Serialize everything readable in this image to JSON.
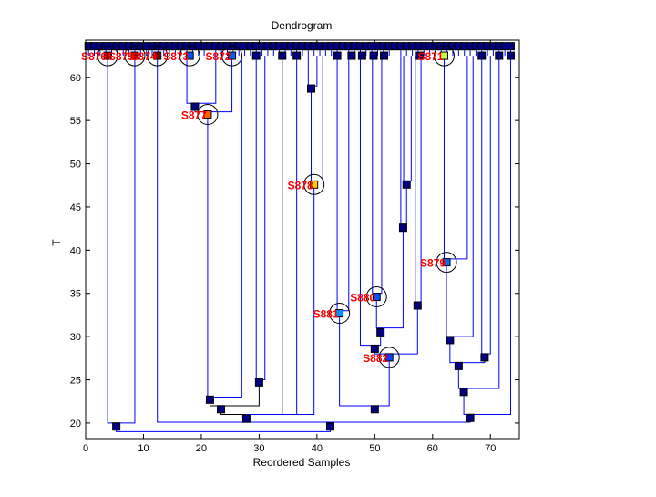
{
  "chart_data": {
    "type": "dendrogram",
    "title": "Dendrogram",
    "xlabel": "Reordered Samples",
    "ylabel": "T",
    "xlim": [
      0,
      75
    ],
    "ylim": [
      18.2,
      64.3
    ],
    "xticks": [
      0,
      10,
      20,
      30,
      40,
      50,
      60,
      70
    ],
    "yticks": [
      20,
      25,
      30,
      35,
      40,
      45,
      50,
      55,
      60
    ],
    "leaf_count": 74,
    "leaf_T": 63.6,
    "colors": {
      "line": "#0000ff",
      "node": "#000080",
      "label": "#ff0000"
    },
    "highlighted_nodes": [
      {
        "label": "S876",
        "x": 3.8,
        "T": 62.5,
        "color": "#a00000"
      },
      {
        "label": "S875",
        "x": 8.5,
        "T": 62.5,
        "color": "#a00000"
      },
      {
        "label": "S874",
        "x": 12.4,
        "T": 62.5,
        "color": "#800000"
      },
      {
        "label": "S873",
        "x": 18.0,
        "T": 62.5,
        "color": "#0050ff"
      },
      {
        "label": "S872",
        "x": 25.3,
        "T": 62.5,
        "color": "#0060ff"
      },
      {
        "label": "S877",
        "x": 21.1,
        "T": 55.7,
        "color": "#ff6000"
      },
      {
        "label": "S878",
        "x": 39.5,
        "T": 47.6,
        "color": "#ffd000"
      },
      {
        "label": "S879",
        "x": 62.4,
        "T": 38.6,
        "color": "#0070ff"
      },
      {
        "label": "S880",
        "x": 50.3,
        "T": 34.6,
        "color": "#0050ff"
      },
      {
        "label": "S881",
        "x": 43.9,
        "T": 32.7,
        "color": "#0090ff"
      },
      {
        "label": "S882",
        "x": 52.5,
        "T": 27.6,
        "color": "#0040ff"
      },
      {
        "label": "S871",
        "x": 62.0,
        "T": 62.5,
        "color": "#c0ff40"
      }
    ],
    "nodes": [
      [
        5.3,
        19.6
      ],
      [
        18.9,
        56.6
      ],
      [
        21.5,
        22.7
      ],
      [
        23.4,
        21.6
      ],
      [
        27.8,
        20.5
      ],
      [
        30,
        24.7
      ],
      [
        39,
        58.7
      ],
      [
        42.3,
        19.6
      ],
      [
        50,
        21.6
      ],
      [
        50,
        28.6
      ],
      [
        51,
        30.5
      ],
      [
        55.5,
        47.6
      ],
      [
        54.9,
        42.6
      ],
      [
        57.4,
        33.6
      ],
      [
        63,
        29.6
      ],
      [
        64.5,
        26.6
      ],
      [
        65.4,
        23.6
      ],
      [
        66.5,
        20.6
      ],
      [
        69,
        27.6
      ],
      [
        29.5,
        62.5
      ],
      [
        34,
        62.5
      ],
      [
        36.5,
        62.5
      ],
      [
        43.5,
        62.5
      ],
      [
        46,
        62.5
      ],
      [
        47.8,
        62.5
      ],
      [
        49.8,
        62.5
      ],
      [
        51.6,
        62.5
      ],
      [
        57.8,
        62.5
      ],
      [
        68.5,
        62.5
      ],
      [
        71.5,
        62.5
      ],
      [
        73.5,
        62.5
      ]
    ],
    "links": [
      [
        3.8,
        62.5,
        8.5,
        62.5,
        20.0,
        "b"
      ],
      [
        5.3,
        19.6,
        42.3,
        19.6,
        19.0,
        "b"
      ],
      [
        12.4,
        62.5,
        66.5,
        20.6,
        20.1,
        "b"
      ],
      [
        17.5,
        62.5,
        22.5,
        62.5,
        57.0,
        "b"
      ],
      [
        18.9,
        56.6,
        25.3,
        62.5,
        56.0,
        "b"
      ],
      [
        21.1,
        55.7,
        27.0,
        62.5,
        23.0,
        "b"
      ],
      [
        21.5,
        22.7,
        30,
        24.7,
        22.0,
        "k"
      ],
      [
        29.5,
        62.5,
        31,
        62.5,
        25.0,
        "b"
      ],
      [
        23.4,
        21.6,
        34,
        62.5,
        21.0,
        "k"
      ],
      [
        27.8,
        20.5,
        39.5,
        47.6,
        21.0,
        "b"
      ],
      [
        36.5,
        62.5,
        36.5,
        62.5,
        21.0,
        "b"
      ],
      [
        38.5,
        62.5,
        40,
        62.5,
        59.0,
        "b"
      ],
      [
        39,
        58.7,
        41,
        62.5,
        48.0,
        "b"
      ],
      [
        43.5,
        62.5,
        45.5,
        62.5,
        33.0,
        "b"
      ],
      [
        43.9,
        32.7,
        52.5,
        27.6,
        22.0,
        "b"
      ],
      [
        50,
        28.6,
        57.4,
        33.6,
        28.0,
        "b"
      ],
      [
        47.5,
        62.5,
        51,
        30.5,
        29.0,
        "b"
      ],
      [
        50.3,
        34.6,
        54.9,
        42.6,
        31.0,
        "b"
      ],
      [
        49.6,
        62.5,
        51.2,
        62.5,
        35.0,
        "b"
      ],
      [
        54.5,
        62.5,
        55.5,
        47.6,
        43.0,
        "b"
      ],
      [
        55,
        62.5,
        56.3,
        62.5,
        48.0,
        "b"
      ],
      [
        57,
        62.5,
        58,
        62.5,
        34.0,
        "b"
      ],
      [
        62,
        62.5,
        66,
        62.5,
        39.0,
        "b"
      ],
      [
        62.4,
        38.6,
        67,
        62.5,
        30.0,
        "b"
      ],
      [
        63,
        29.6,
        69,
        27.6,
        27.0,
        "b"
      ],
      [
        68.5,
        62.5,
        70,
        62.5,
        28.0,
        "b"
      ],
      [
        64.5,
        26.6,
        71.5,
        62.5,
        24.0,
        "b"
      ],
      [
        65.4,
        23.6,
        73.5,
        62.5,
        21.0,
        "b"
      ]
    ]
  }
}
